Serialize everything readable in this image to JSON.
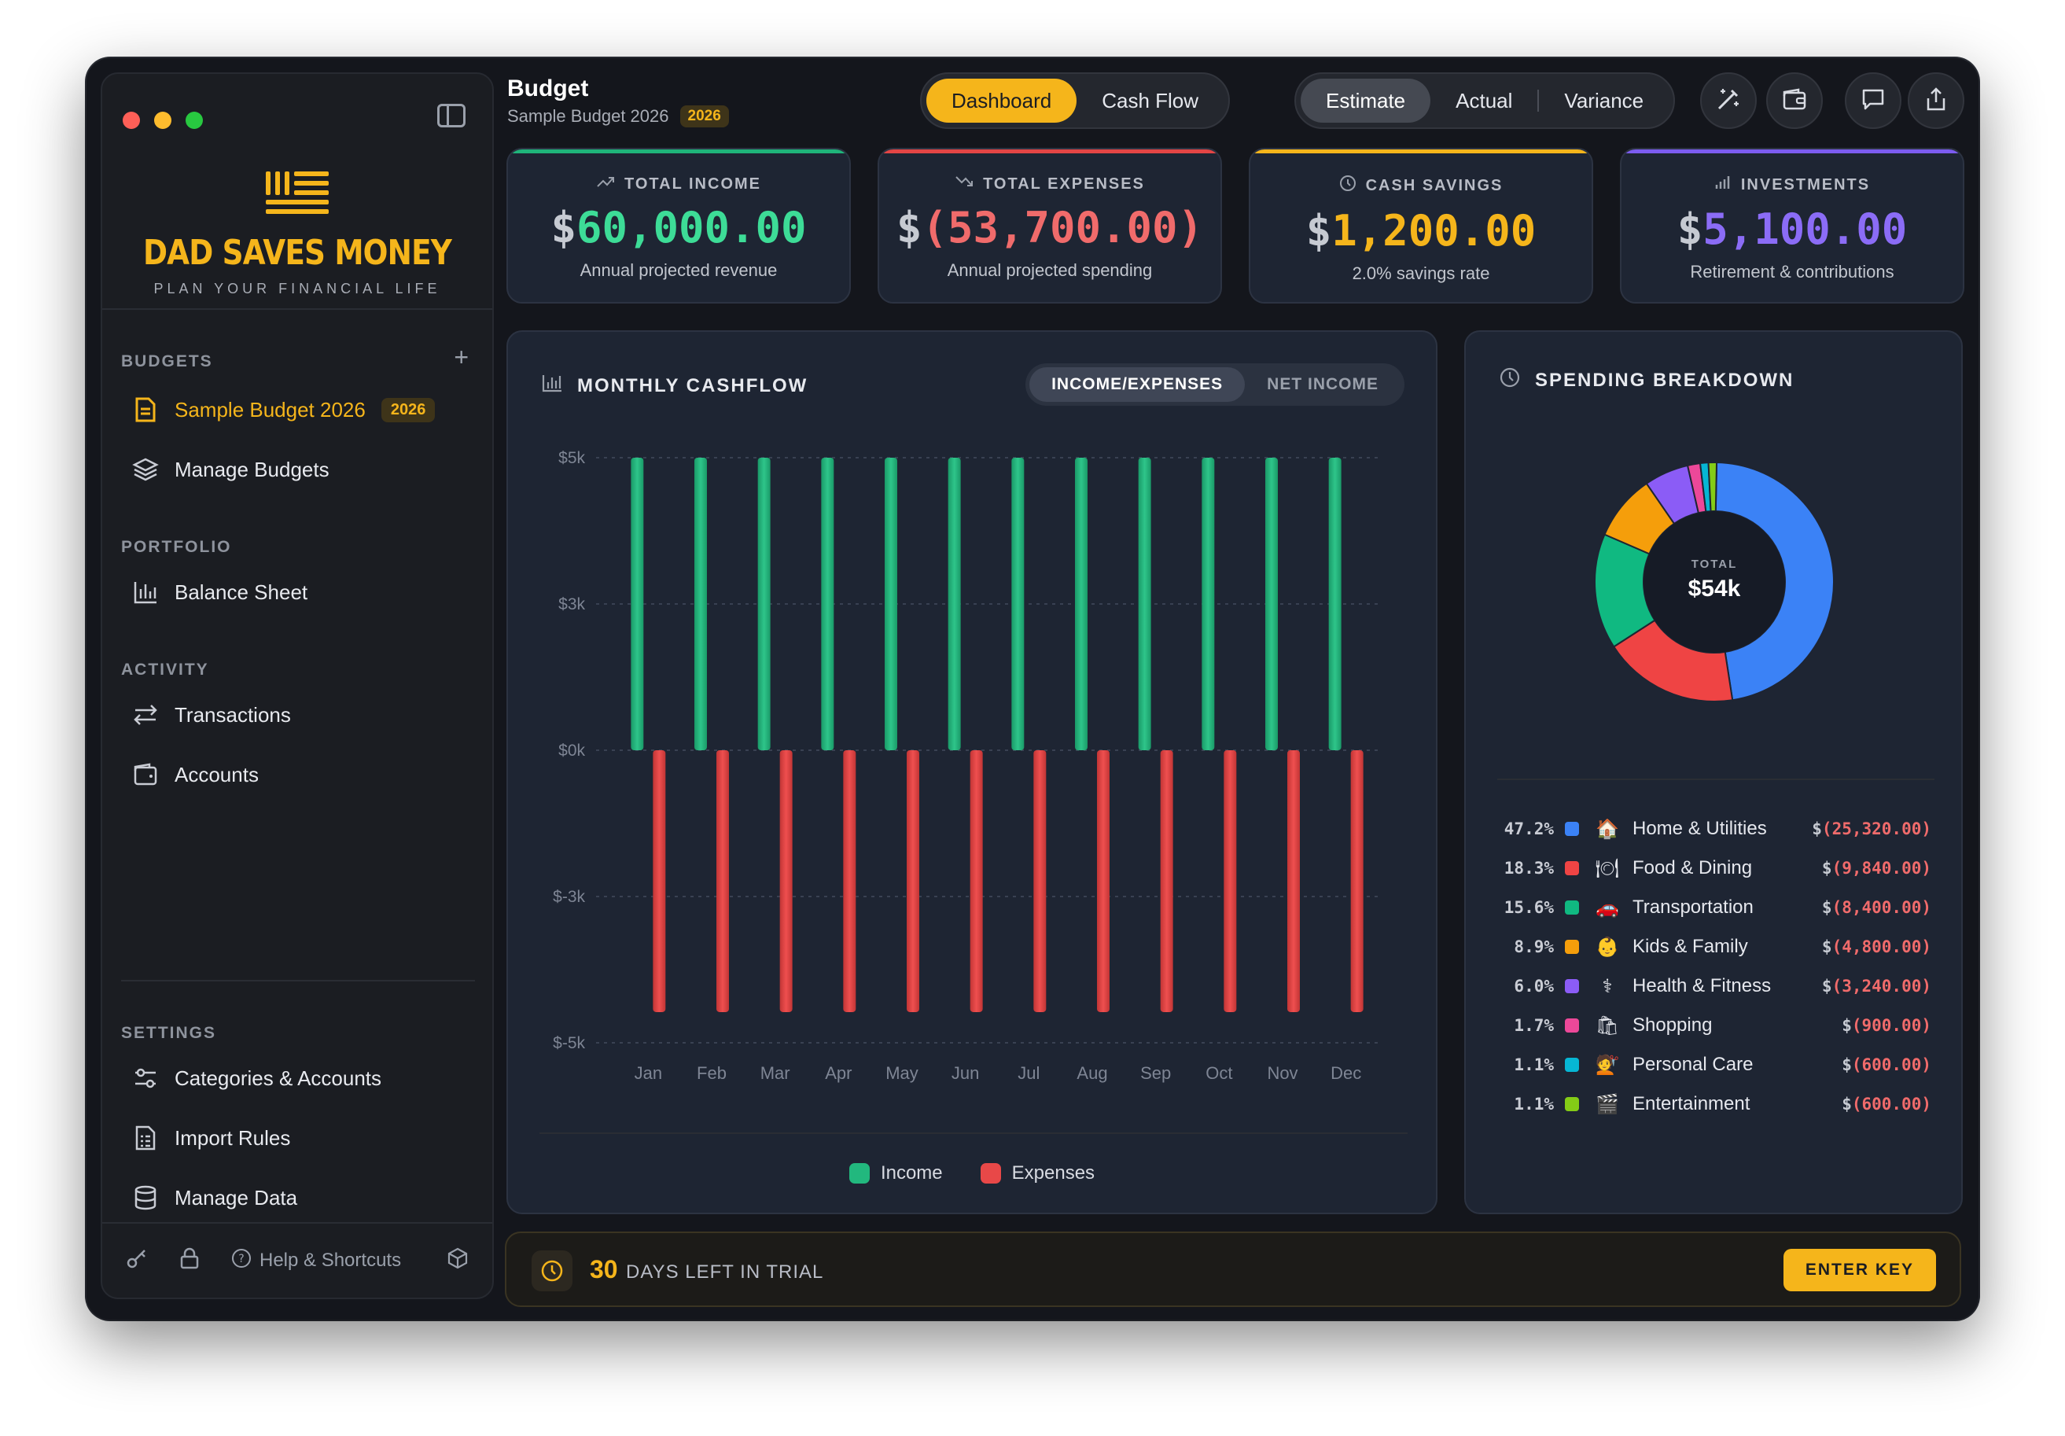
{
  "sidebar": {
    "brand_name": "DAD SAVES MONEY",
    "brand_tagline": "PLAN YOUR FINANCIAL LIFE",
    "sections": {
      "budgets": "BUDGETS",
      "portfolio": "PORTFOLIO",
      "activity": "ACTIVITY",
      "settings": "SETTINGS"
    },
    "items": {
      "sample_budget": "Sample Budget 2026",
      "sample_budget_badge": "2026",
      "manage_budgets": "Manage Budgets",
      "balance_sheet": "Balance Sheet",
      "transactions": "Transactions",
      "accounts": "Accounts",
      "categories_accounts": "Categories & Accounts",
      "import_rules": "Import Rules",
      "manage_data": "Manage Data"
    },
    "help_label": "Help & Shortcuts"
  },
  "header": {
    "title": "Budget",
    "subtitle": "Sample Budget 2026",
    "year_badge": "2026",
    "view_tabs": [
      "Dashboard",
      "Cash Flow"
    ],
    "mode_tabs": [
      "Estimate",
      "Actual",
      "Variance"
    ]
  },
  "kpis": {
    "income": {
      "label": "TOTAL INCOME",
      "dollar": "$",
      "value": "60,000.00",
      "sub": "Annual projected revenue",
      "color": "#3ddc97"
    },
    "expenses": {
      "label": "TOTAL EXPENSES",
      "dollar": "$",
      "value": "(53,700.00)",
      "sub": "Annual projected spending",
      "color": "#f06b6b"
    },
    "savings": {
      "label": "CASH SAVINGS",
      "dollar": "$",
      "value": "1,200.00",
      "sub": "2.0% savings rate",
      "color": "#f5b51b"
    },
    "investments": {
      "label": "INVESTMENTS",
      "dollar": "$",
      "value": "5,100.00",
      "sub": "Retirement & contributions",
      "color": "#8b6cf6"
    }
  },
  "cashflow": {
    "title": "MONTHLY CASHFLOW",
    "toggle": [
      "INCOME/EXPENSES",
      "NET INCOME"
    ],
    "legend": [
      "Income",
      "Expenses"
    ]
  },
  "chart_data": {
    "type": "bar",
    "categories": [
      "Jan",
      "Feb",
      "Mar",
      "Apr",
      "May",
      "Jun",
      "Jul",
      "Aug",
      "Sep",
      "Oct",
      "Nov",
      "Dec"
    ],
    "y_ticks": [
      "$5k",
      "$3k",
      "$0k",
      "$-3k",
      "$-5k"
    ],
    "ylim": [
      -5000,
      5000
    ],
    "series": [
      {
        "name": "Income",
        "values": [
          5000,
          5000,
          5000,
          5000,
          5000,
          5000,
          5000,
          5000,
          5000,
          5000,
          5000,
          5000
        ],
        "color": "#2ec58a"
      },
      {
        "name": "Expenses",
        "values": [
          -4475,
          -4475,
          -4475,
          -4475,
          -4475,
          -4475,
          -4475,
          -4475,
          -4475,
          -4475,
          -4475,
          -4475
        ],
        "color": "#ef4f4f"
      }
    ]
  },
  "spending": {
    "title": "SPENDING BREAKDOWN",
    "total_label": "TOTAL",
    "total_value": "$54k",
    "categories": [
      {
        "pct": "47.2%",
        "color": "#3b82f6",
        "emoji": "🏠",
        "name": "Home & Utilities",
        "amount": "(25,320.00)",
        "value": 47.2
      },
      {
        "pct": "18.3%",
        "color": "#ef4444",
        "emoji": "🍽",
        "name": "Food & Dining",
        "amount": "(9,840.00)",
        "value": 18.3
      },
      {
        "pct": "15.6%",
        "color": "#10b981",
        "emoji": "🚗",
        "name": "Transportation",
        "amount": "(8,400.00)",
        "value": 15.6
      },
      {
        "pct": "8.9%",
        "color": "#f59e0b",
        "emoji": "👶",
        "name": "Kids & Family",
        "amount": "(4,800.00)",
        "value": 8.9
      },
      {
        "pct": "6.0%",
        "color": "#8b5cf6",
        "emoji": "⚕",
        "name": "Health & Fitness",
        "amount": "(3,240.00)",
        "value": 6.0
      },
      {
        "pct": "1.7%",
        "color": "#ec4899",
        "emoji": "🛍",
        "name": "Shopping",
        "amount": "(900.00)",
        "value": 1.7
      },
      {
        "pct": "1.1%",
        "color": "#06b6d4",
        "emoji": "💇",
        "name": "Personal Care",
        "amount": "(600.00)",
        "value": 1.1
      },
      {
        "pct": "1.1%",
        "color": "#84cc16",
        "emoji": "🎬",
        "name": "Entertainment",
        "amount": "(600.00)",
        "value": 1.1
      }
    ]
  },
  "trial": {
    "days": "30",
    "text": "DAYS LEFT IN TRIAL",
    "button": "ENTER KEY"
  }
}
